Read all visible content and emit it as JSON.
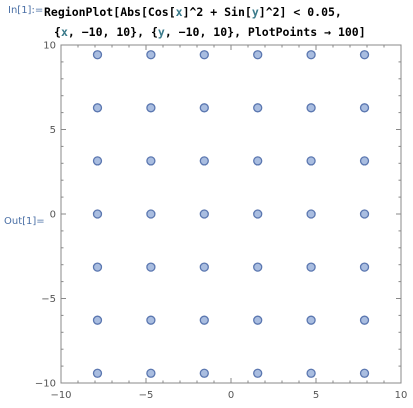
{
  "input_cell": {
    "label": "In[1]:=",
    "code_line1": {
      "fn1": "RegionPlot",
      "p1": "[",
      "fn2": "Abs",
      "p2": "[",
      "fn3": "Cos",
      "p3": "[",
      "v1": "x",
      "p4": "]^2 + ",
      "fn4": "Sin",
      "p5": "[",
      "v2": "y",
      "p6": "]^2] < 0.05,"
    },
    "code_line2": {
      "p1": "{",
      "v1": "x",
      "p2": ", −10, 10}, {",
      "v2": "y",
      "p3": ", −10, 10}, ",
      "opt": "PlotPoints",
      "p4": " → 100]"
    }
  },
  "output_cell": {
    "label": "Out[1]="
  },
  "chart_data": {
    "type": "scatter",
    "title": "",
    "xlabel": "",
    "ylabel": "",
    "xlim": [
      -10,
      10
    ],
    "ylim": [
      -10,
      10
    ],
    "x_ticks": [
      -10,
      -5,
      0,
      5,
      10
    ],
    "y_ticks": [
      -10,
      -5,
      0,
      5,
      10
    ],
    "x_tick_labels": [
      "−10",
      "−5",
      "0",
      "5",
      "10"
    ],
    "y_tick_labels": [
      "−10",
      "−5",
      "0",
      "5",
      "10"
    ],
    "grid": false,
    "point_x": [
      -7.854,
      -4.712,
      -1.571,
      1.571,
      4.712,
      7.854
    ],
    "point_y": [
      9.425,
      6.283,
      3.142,
      0,
      -3.142,
      -6.283,
      -9.425
    ],
    "marker_fill": "#a9bde0",
    "marker_stroke": "#5b77b0",
    "frame_color": "#888888"
  }
}
